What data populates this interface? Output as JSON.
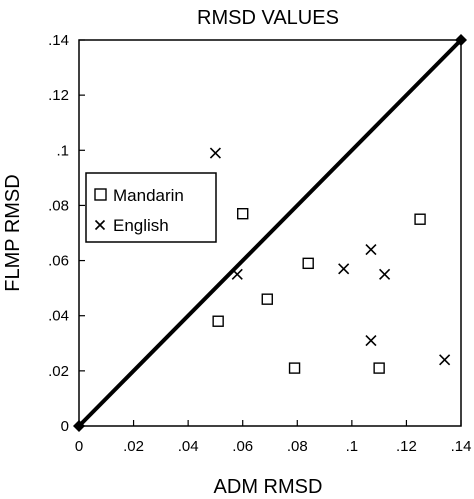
{
  "chart_data": {
    "type": "scatter",
    "title": "RMSD VALUES",
    "xlabel": "ADM RMSD",
    "ylabel": "FLMP RMSD",
    "xlim": [
      0,
      0.14
    ],
    "ylim": [
      0,
      0.14
    ],
    "xticks": [
      {
        "value": 0,
        "label": "0"
      },
      {
        "value": 0.02,
        "label": ".02"
      },
      {
        "value": 0.04,
        "label": ".04"
      },
      {
        "value": 0.06,
        "label": ".06"
      },
      {
        "value": 0.08,
        "label": ".08"
      },
      {
        "value": 0.1,
        "label": ".1"
      },
      {
        "value": 0.12,
        "label": ".12"
      },
      {
        "value": 0.14,
        "label": ".14"
      }
    ],
    "yticks": [
      {
        "value": 0,
        "label": "0"
      },
      {
        "value": 0.02,
        "label": ".02"
      },
      {
        "value": 0.04,
        "label": ".04"
      },
      {
        "value": 0.06,
        "label": ".06"
      },
      {
        "value": 0.08,
        "label": ".08"
      },
      {
        "value": 0.1,
        "label": ".1"
      },
      {
        "value": 0.12,
        "label": ".12"
      },
      {
        "value": 0.14,
        "label": ".14"
      }
    ],
    "grid": false,
    "legend_position": "left",
    "reference_line": {
      "from": [
        0,
        0
      ],
      "to": [
        0.14,
        0.14
      ]
    },
    "series": [
      {
        "name": "Mandarin",
        "marker": "square",
        "points": [
          {
            "x": 0.06,
            "y": 0.077
          },
          {
            "x": 0.051,
            "y": 0.038
          },
          {
            "x": 0.069,
            "y": 0.046
          },
          {
            "x": 0.084,
            "y": 0.059
          },
          {
            "x": 0.125,
            "y": 0.075
          },
          {
            "x": 0.079,
            "y": 0.021
          },
          {
            "x": 0.11,
            "y": 0.021
          }
        ]
      },
      {
        "name": "English",
        "marker": "x",
        "points": [
          {
            "x": 0.05,
            "y": 0.099
          },
          {
            "x": 0.058,
            "y": 0.055
          },
          {
            "x": 0.097,
            "y": 0.057
          },
          {
            "x": 0.107,
            "y": 0.064
          },
          {
            "x": 0.112,
            "y": 0.055
          },
          {
            "x": 0.107,
            "y": 0.031
          },
          {
            "x": 0.134,
            "y": 0.024
          }
        ]
      }
    ]
  }
}
